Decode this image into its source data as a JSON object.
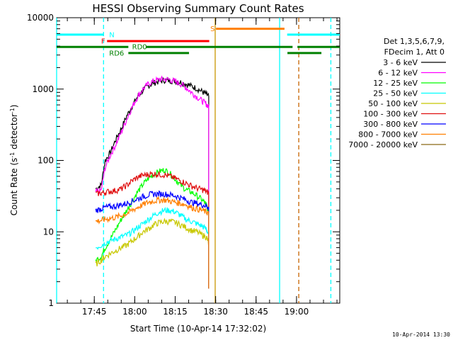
{
  "chart_data": {
    "type": "line",
    "title": "HESSI Observing Summary Count Rates",
    "xlabel": "Start Time (10-Apr-14 17:32:02)",
    "ylabel_main": "Count Rate (s",
    "ylabel_sup1": "-1",
    "ylabel_mid": " detector",
    "ylabel_sup2": "-1",
    "ylabel_end": ")",
    "footer": "10-Apr-2014 13:30",
    "x_unit": "minutes from 17:32:02",
    "xlim": [
      0,
      105
    ],
    "ylim": [
      1,
      10000
    ],
    "yscale": "log",
    "x_ticks": [
      {
        "value": 13.97,
        "label": "17:45"
      },
      {
        "value": 28.97,
        "label": "18:00"
      },
      {
        "value": 43.97,
        "label": "18:15"
      },
      {
        "value": 58.97,
        "label": "18:30"
      },
      {
        "value": 73.97,
        "label": "18:45"
      },
      {
        "value": 88.97,
        "label": "19:00"
      }
    ],
    "y_ticks": [
      {
        "value": 1,
        "label": "1"
      },
      {
        "value": 10,
        "label": "10"
      },
      {
        "value": 100,
        "label": "100"
      },
      {
        "value": 1000,
        "label": "1000"
      },
      {
        "value": 10000,
        "label": "10000"
      }
    ],
    "legend": {
      "header": [
        "Det 1,3,5,6,7,9,",
        "FDecim 1, Att 0"
      ],
      "placement": "right"
    },
    "series": [
      {
        "name": "3 - 6 keV",
        "color": "#000000",
        "x": [
          14.5,
          16.5,
          18,
          20,
          22,
          24,
          26,
          28,
          30,
          32,
          34,
          36,
          38,
          40,
          42,
          44,
          46,
          48,
          50,
          52,
          54,
          55.5,
          56.4
        ],
        "y": [
          40,
          45,
          100,
          130,
          200,
          280,
          420,
          580,
          780,
          960,
          1110,
          1220,
          1290,
          1330,
          1320,
          1300,
          1250,
          1180,
          1100,
          1020,
          920,
          850,
          790
        ]
      },
      {
        "name": "6 - 12 keV",
        "color": "#ff00ff",
        "x": [
          14.5,
          16.5,
          18,
          20,
          22,
          24,
          26,
          28,
          30,
          32,
          34,
          36,
          38,
          40,
          42,
          44,
          46,
          48,
          50,
          52,
          54,
          55.5,
          56.4
        ],
        "y": [
          36,
          38,
          80,
          120,
          170,
          250,
          380,
          560,
          780,
          1000,
          1180,
          1300,
          1360,
          1380,
          1350,
          1280,
          1180,
          1050,
          900,
          780,
          680,
          620,
          560
        ]
      },
      {
        "name": "12 - 25 keV",
        "color": "#00ff00",
        "x": [
          14.5,
          16.5,
          18,
          20,
          22,
          24,
          26,
          28,
          30,
          32,
          34,
          36,
          38,
          40,
          42,
          44,
          46,
          48,
          50,
          52,
          54,
          55.5,
          56.4
        ],
        "y": [
          4,
          4.5,
          6,
          8,
          11,
          15,
          20,
          27,
          36,
          46,
          56,
          64,
          70,
          74,
          66,
          55,
          45,
          39,
          36,
          32,
          28,
          24,
          19
        ]
      },
      {
        "name": "25 - 50 keV",
        "color": "#00ffff",
        "x": [
          14.5,
          16.5,
          18,
          20,
          22,
          24,
          26,
          28,
          30,
          32,
          34,
          36,
          38,
          40,
          42,
          44,
          46,
          48,
          50,
          52,
          54,
          55.5,
          56.4
        ],
        "y": [
          6,
          6.5,
          7,
          7.5,
          8,
          8.5,
          9,
          10,
          11.5,
          13,
          15,
          17,
          19,
          20,
          20,
          19,
          17,
          15,
          14,
          13,
          12,
          11,
          9
        ]
      },
      {
        "name": "50 - 100 keV",
        "color": "#c8c800",
        "x": [
          14.5,
          16.5,
          18,
          20,
          22,
          24,
          26,
          28,
          30,
          32,
          34,
          36,
          38,
          40,
          42,
          44,
          46,
          48,
          50,
          52,
          54,
          55.5,
          56.4
        ],
        "y": [
          3.5,
          4,
          4.5,
          5,
          5.5,
          6,
          6.5,
          7.5,
          8.5,
          10,
          11,
          12.5,
          13.5,
          14,
          14,
          13.5,
          12.5,
          11.5,
          10.5,
          10,
          9,
          8.5,
          7
        ]
      },
      {
        "name": "100 - 300 keV",
        "color": "#e01010",
        "x": [
          14.5,
          16.5,
          18,
          20,
          22,
          24,
          26,
          28,
          30,
          32,
          34,
          36,
          38,
          40,
          42,
          44,
          46,
          48,
          50,
          52,
          54,
          55.5,
          56.4
        ],
        "y": [
          34,
          35,
          36,
          37,
          38,
          40,
          45,
          52,
          58,
          62,
          64,
          65,
          64,
          63,
          60,
          56,
          52,
          48,
          44,
          41,
          39,
          37,
          35
        ]
      },
      {
        "name": "300 - 800 keV",
        "color": "#0000ff",
        "x": [
          14.5,
          16.5,
          18,
          20,
          22,
          24,
          26,
          28,
          30,
          32,
          34,
          36,
          38,
          40,
          42,
          44,
          46,
          48,
          50,
          52,
          54,
          55.5,
          56.4
        ],
        "y": [
          20,
          21,
          22,
          22.5,
          23,
          24,
          25,
          27,
          29,
          31,
          33,
          34,
          34,
          34,
          33,
          32,
          30,
          28,
          26,
          25,
          24,
          23,
          22
        ]
      },
      {
        "name": "800 - 7000 keV",
        "color": "#ff7f00",
        "x": [
          14.5,
          16.5,
          18,
          20,
          22,
          24,
          26,
          28,
          30,
          32,
          34,
          36,
          38,
          40,
          42,
          44,
          46,
          48,
          50,
          52,
          54,
          55.5,
          56.4
        ],
        "y": [
          14,
          14.5,
          15,
          15.5,
          16,
          17,
          18,
          20,
          22,
          24,
          26,
          27,
          28,
          28,
          27,
          26,
          25,
          24,
          22,
          21,
          20,
          19,
          18
        ]
      },
      {
        "name": "7000 - 20000 keV",
        "color": "#8b6914",
        "x": [],
        "y": []
      }
    ],
    "flags": [
      {
        "label": "N",
        "color": "#00ffff",
        "y": 5800,
        "segments": [
          [
            0,
            17.4
          ],
          [
            85.5,
            105
          ]
        ],
        "label_x": 19.5
      },
      {
        "label": "F",
        "color": "#ff0000",
        "y": 4700,
        "segments": [
          [
            18.7,
            56.6
          ]
        ],
        "label_x": 16.5
      },
      {
        "label": "S",
        "color": "#ff7f00",
        "y": 7000,
        "segments": [
          [
            59.1,
            84.5
          ]
        ],
        "label_x": 57.0
      },
      {
        "label": "RD0",
        "color": "#008000",
        "y": 3900,
        "segments": [
          [
            0,
            26.6
          ],
          [
            33.1,
            87.5
          ],
          [
            89.3,
            105
          ]
        ],
        "label_x": 28.0
      },
      {
        "label": "RD6",
        "color": "#008000",
        "y": 3200,
        "segments": [
          [
            26.6,
            49.1
          ],
          [
            85.6,
            98.2
          ]
        ],
        "label_x": 19.5
      }
    ],
    "vlines": [
      {
        "x": 0.0,
        "color": "#00ffff",
        "style": "solid"
      },
      {
        "x": 17.4,
        "color": "#00ffff",
        "style": "dashed"
      },
      {
        "x": 58.8,
        "color": "#c89600",
        "style": "solid"
      },
      {
        "x": 82.7,
        "color": "#00ffff",
        "style": "solid"
      },
      {
        "x": 89.8,
        "color": "#c86400",
        "style": "dashed"
      },
      {
        "x": 101.7,
        "color": "#00ffff",
        "style": "dashed"
      }
    ]
  }
}
